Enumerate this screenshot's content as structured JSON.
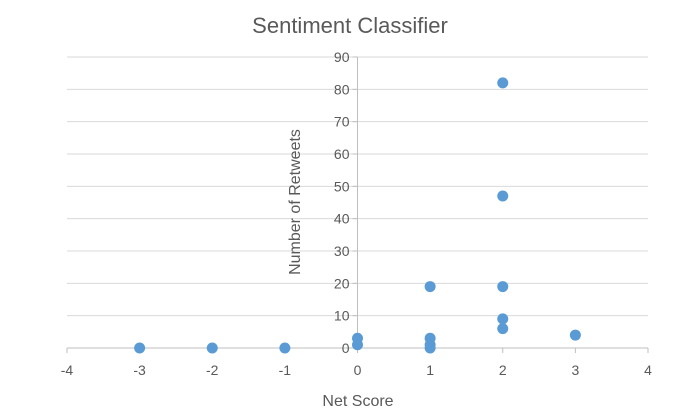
{
  "chart_data": {
    "type": "scatter",
    "title": "Sentiment Classifier",
    "xlabel": "Net Score",
    "ylabel": "Number of Retweets",
    "xlim": [
      -4,
      4
    ],
    "ylim": [
      0,
      90
    ],
    "x_ticks": [
      "-4",
      "-3",
      "-2",
      "-1",
      "0",
      "1",
      "2",
      "3",
      "4"
    ],
    "y_ticks": [
      "0",
      "10",
      "20",
      "30",
      "40",
      "50",
      "60",
      "70",
      "80",
      "90"
    ],
    "grid": "horizontal",
    "point_color": "#5B9BD5",
    "points": [
      {
        "x": -3,
        "y": 0
      },
      {
        "x": -2,
        "y": 0
      },
      {
        "x": -1,
        "y": 0
      },
      {
        "x": 0,
        "y": 1
      },
      {
        "x": 0,
        "y": 3
      },
      {
        "x": 1,
        "y": 0
      },
      {
        "x": 1,
        "y": 1
      },
      {
        "x": 1,
        "y": 3
      },
      {
        "x": 1,
        "y": 19
      },
      {
        "x": 2,
        "y": 82
      },
      {
        "x": 2,
        "y": 47
      },
      {
        "x": 2,
        "y": 19
      },
      {
        "x": 2,
        "y": 9
      },
      {
        "x": 2,
        "y": 6
      },
      {
        "x": 3,
        "y": 4
      }
    ]
  }
}
